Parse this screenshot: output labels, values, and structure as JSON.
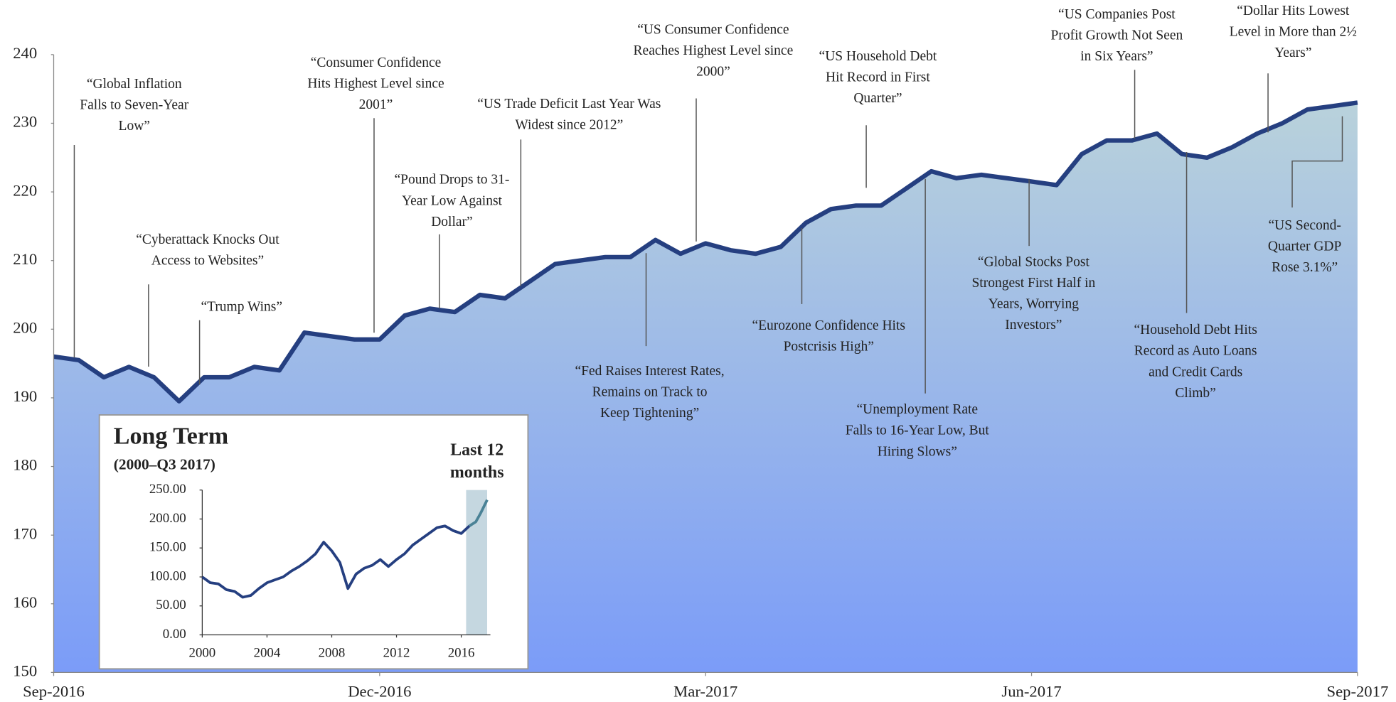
{
  "chart_data": [
    {
      "type": "area",
      "x": [
        0,
        1,
        2,
        3,
        4,
        5,
        6,
        7,
        8,
        9,
        10,
        11,
        12,
        13,
        14,
        15,
        16,
        17,
        18,
        19,
        20,
        21,
        22,
        23,
        24,
        25,
        26,
        27,
        28,
        29,
        30,
        31,
        32,
        33,
        34,
        35,
        36,
        37,
        38,
        39,
        40,
        41,
        42,
        43,
        44,
        45,
        46,
        47,
        48,
        49,
        50,
        51,
        52
      ],
      "values": [
        196,
        195.5,
        193,
        194.5,
        193,
        189.5,
        193,
        193,
        194.5,
        194,
        199.5,
        199,
        198.5,
        198.5,
        202,
        203,
        202.5,
        205,
        204.5,
        207,
        209.5,
        210,
        210.5,
        210.5,
        213,
        211,
        212.5,
        211.5,
        211,
        212,
        215.5,
        217.5,
        218,
        218,
        220.5,
        223,
        222,
        222.5,
        222,
        221.5,
        221,
        225.5,
        227.5,
        227.5,
        228.5,
        225.5,
        225,
        226.5,
        228.5,
        230,
        232,
        232.5,
        233
      ],
      "color": "#253f80",
      "xlim": [
        0,
        52
      ],
      "xticks": [
        {
          "value": 0,
          "label": "Sep-2016"
        },
        {
          "value": 13,
          "label": "Dec-2016"
        },
        {
          "value": 26,
          "label": "Mar-2017"
        },
        {
          "value": 39,
          "label": "Jun-2017"
        },
        {
          "value": 52,
          "label": "Sep-2017"
        }
      ],
      "ylim": [
        150,
        240
      ],
      "yticks": [
        150,
        160,
        170,
        180,
        190,
        200,
        210,
        220,
        230,
        240
      ],
      "annotations": [
        [
          "“Global Inflation",
          "Falls to Seven-Year",
          "Low”"
        ],
        [
          "“Cyberattack Knocks Out",
          "Access to Websites”"
        ],
        [
          "“Trump Wins”"
        ],
        [
          "“Consumer Confidence",
          "Hits Highest Level since",
          "2001”"
        ],
        [
          "“US Trade Deficit Last Year Was",
          "Widest since 2012”"
        ],
        [
          "“Pound Drops to 31-",
          "Year Low Against",
          "Dollar”"
        ],
        [
          "“US Consumer Confidence",
          "Reaches Highest Level since",
          "2000”"
        ],
        [
          "“Fed Raises Interest Rates,",
          "Remains on Track to",
          "Keep Tightening”"
        ],
        [
          "“US Household Debt",
          "Hit Record in First",
          "Quarter”"
        ],
        [
          "“Eurozone Confidence Hits",
          "Postcrisis High”"
        ],
        [
          "“Unemployment Rate",
          "Falls to 16-Year Low, But",
          "Hiring Slows”"
        ],
        [
          "“US Companies Post",
          "Profit Growth Not Seen",
          "in Six Years”"
        ],
        [
          "“Global Stocks Post",
          "Strongest First Half in",
          "Years, Worrying",
          "Investors”"
        ],
        [
          "“Household Debt Hits",
          "Record as Auto Loans",
          "and Credit Cards",
          "Climb”"
        ],
        [
          "“Dollar Hits Lowest",
          "Level in More than 2½",
          "Years”"
        ],
        [
          "“US Second-",
          "Quarter GDP",
          "Rose 3.1%”"
        ]
      ]
    },
    {
      "type": "line",
      "title": "Long Term",
      "subtitle": "(2000–Q3 2017)",
      "series": [
        {
          "name": "Long Term",
          "color": "#253f80",
          "x": [
            2000,
            2000.5,
            2001,
            2001.5,
            2002,
            2002.5,
            2003,
            2003.5,
            2004,
            2004.5,
            2005,
            2005.5,
            2006,
            2006.5,
            2007,
            2007.5,
            2008,
            2008.5,
            2009,
            2009.5,
            2010,
            2010.5,
            2011,
            2011.5,
            2012,
            2012.5,
            2013,
            2013.5,
            2014,
            2014.5,
            2015,
            2015.5,
            2016,
            2016.5
          ],
          "values": [
            100,
            90,
            88,
            78,
            75,
            65,
            68,
            80,
            90,
            95,
            100,
            110,
            118,
            128,
            140,
            160,
            145,
            125,
            80,
            105,
            115,
            120,
            130,
            118,
            130,
            140,
            155,
            165,
            175,
            185,
            188,
            180,
            175,
            188
          ]
        },
        {
          "name": "Last 12 months",
          "color": "#4a8296",
          "x": [
            2016.5,
            2016.9,
            2017.2,
            2017.6
          ],
          "values": [
            188,
            195,
            210,
            233
          ]
        }
      ],
      "highlight": [
        2016.3,
        2017.6
      ],
      "xlim": [
        2000,
        2017.8
      ],
      "xticks": [
        2000,
        2004,
        2008,
        2012,
        2016
      ],
      "ylim": [
        0,
        250
      ],
      "yticks": [
        {
          "value": 0,
          "label": "0.00"
        },
        {
          "value": 50,
          "label": "50.00"
        },
        {
          "value": 100,
          "label": "100.00"
        },
        {
          "value": 150,
          "label": "150.00"
        },
        {
          "value": 200,
          "label": "200.00"
        },
        {
          "value": 250,
          "label": "250.00"
        }
      ]
    }
  ]
}
